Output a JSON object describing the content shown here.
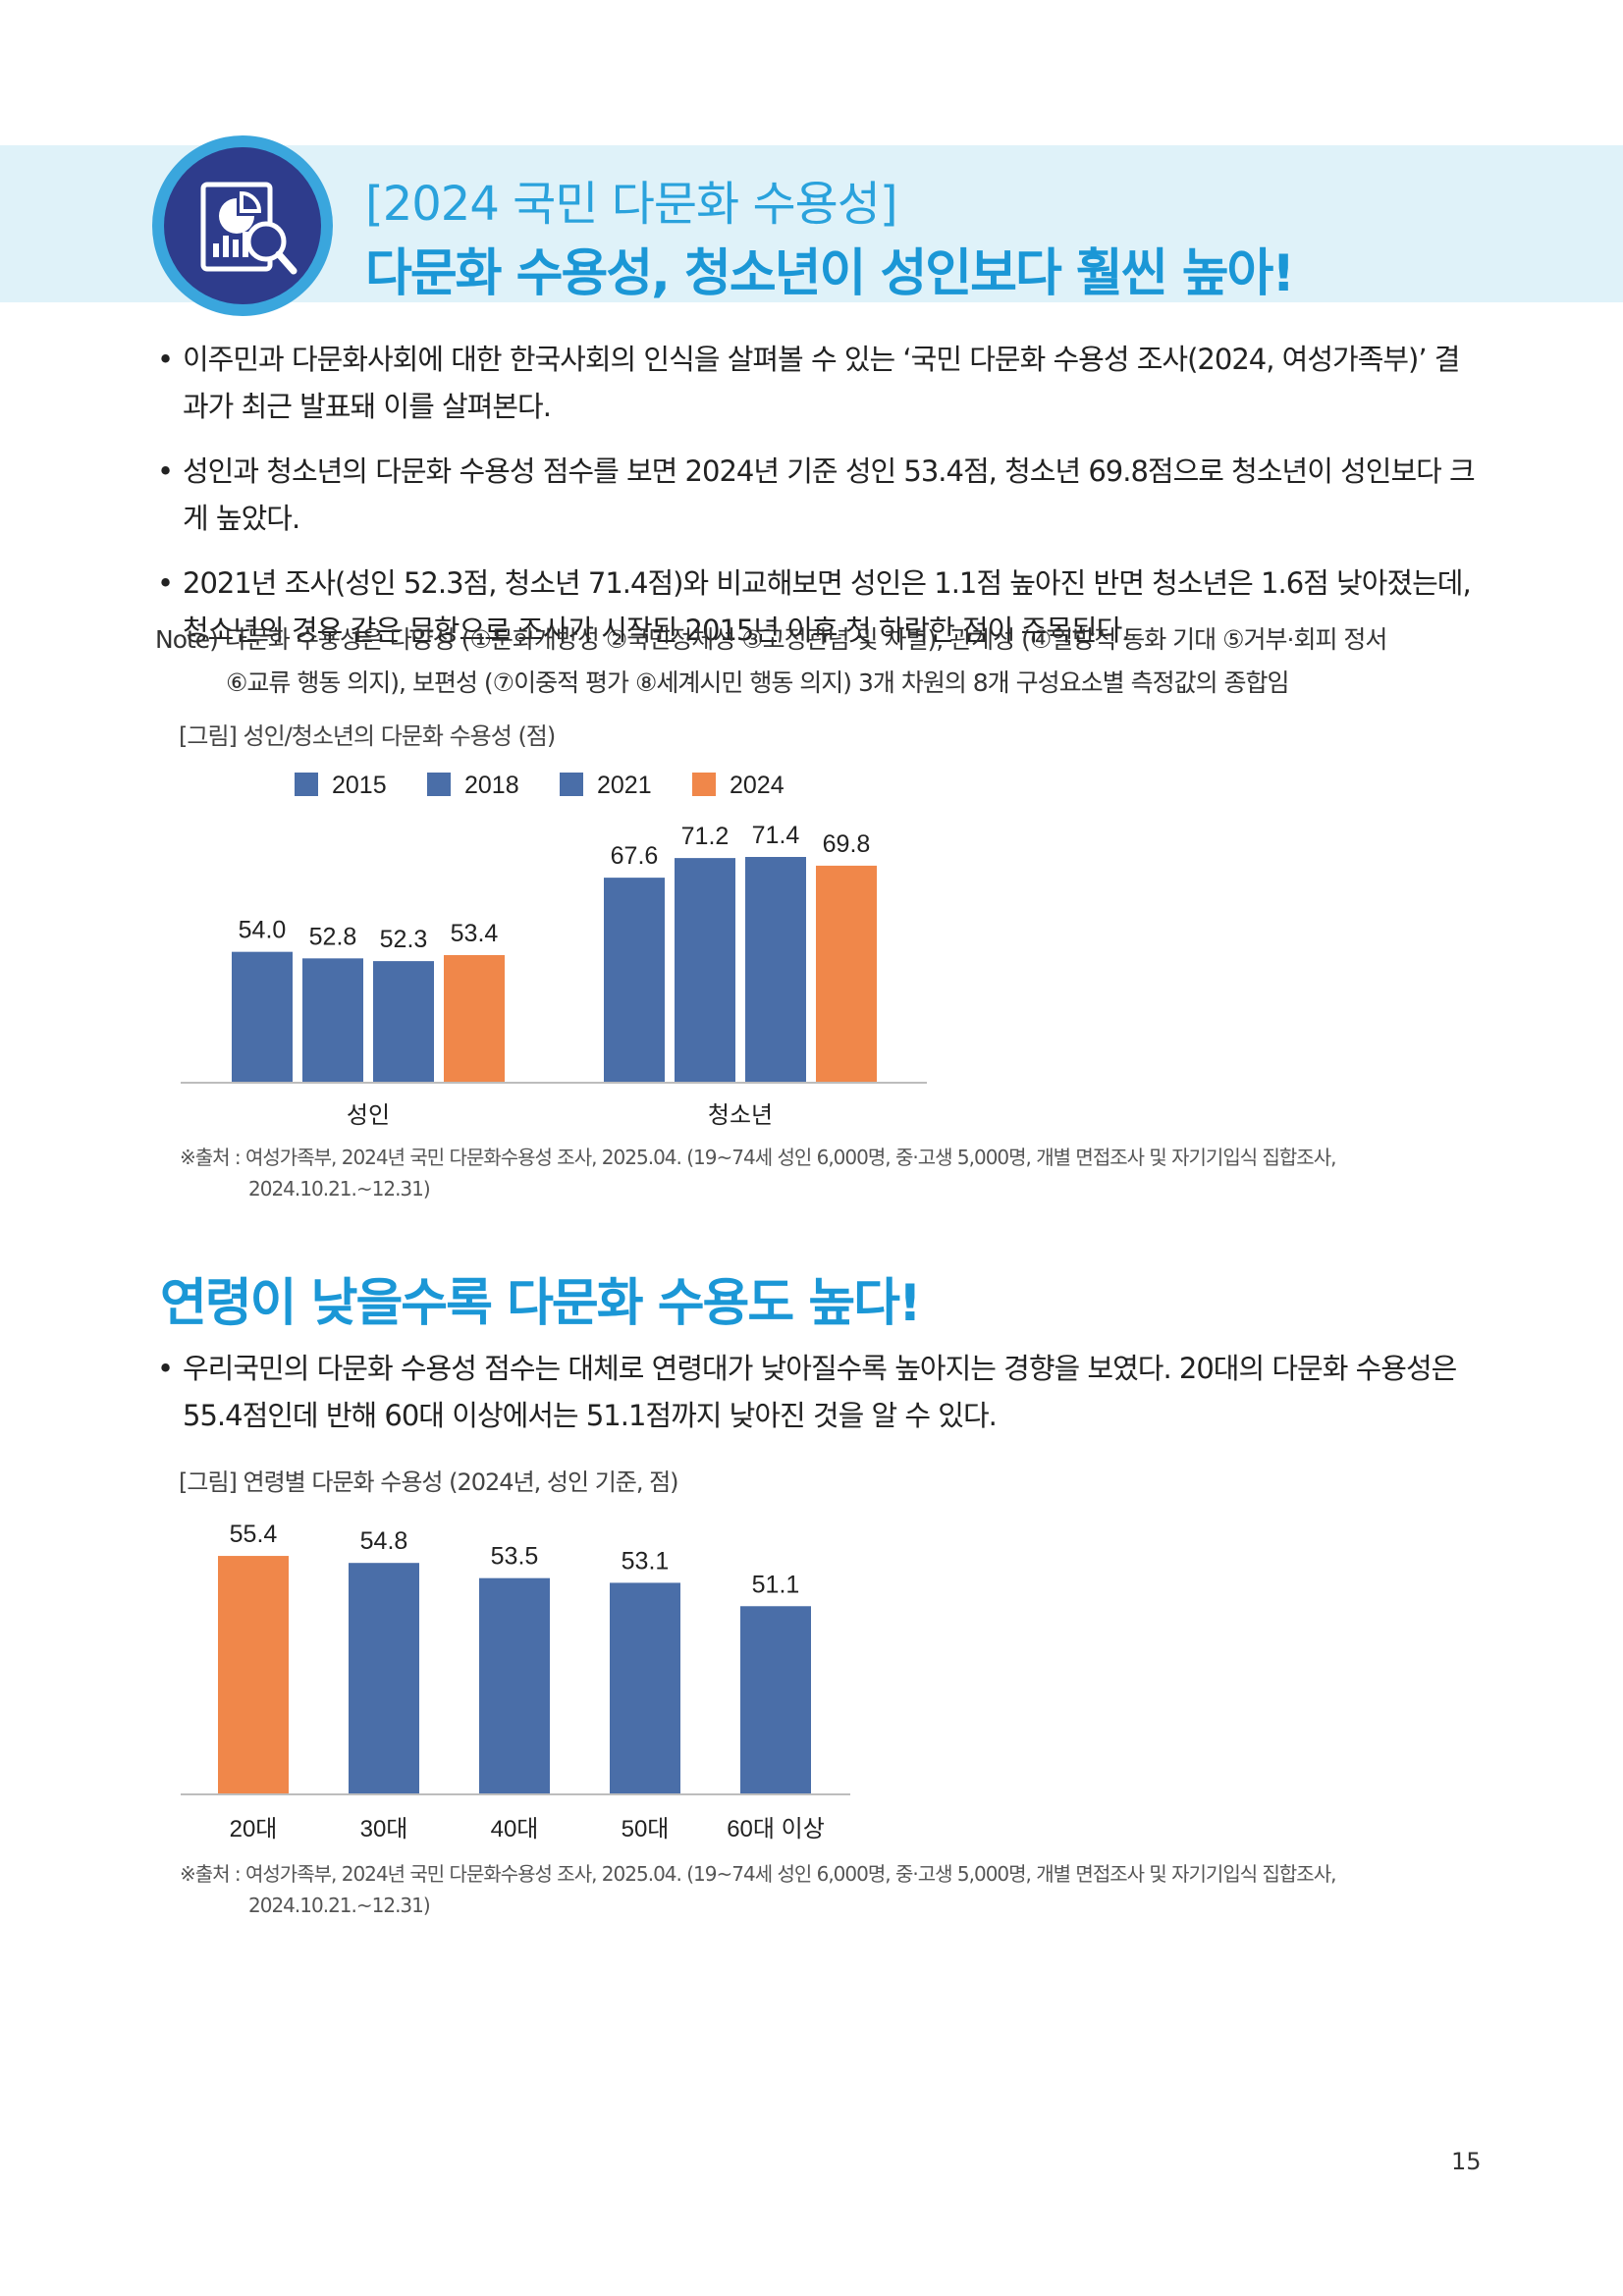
{
  "header": {
    "subtitle": "[2024 국민 다문화 수용성]",
    "title": "다문화 수용성, 청소년이 성인보다 훨씬 높아!"
  },
  "intro_bullets": [
    "이주민과 다문화사회에 대한 한국사회의 인식을 살펴볼 수 있는 ‘국민 다문화 수용성 조사(2024, 여성가족부)’ 결과가 최근 발표돼 이를 살펴본다.",
    "성인과 청소년의 다문화 수용성 점수를 보면 2024년 기준 성인 53.4점, 청소년 69.8점으로 청소년이 성인보다 크게 높았다.",
    "2021년 조사(성인 52.3점, 청소년 71.4점)와 비교해보면 성인은 1.1점 높아진 반면 청소년은 1.6점 낮아졌는데, 청소년의 경우 같은 문항으로 조사가 시작된 2015년 이후 첫 하락한 점이 주목된다."
  ],
  "note": {
    "line1": "Note) 다문화 수용성은 다양성 (①문화개방성 ②국민정체성 ③고정관념 및 차별), 관계성 (④일방적 동화 기대 ⑤거부·회피 정서",
    "line2": "⑥교류 행동 의지), 보편성 (⑦이중적 평가 ⑧세계시민 행동 의지) 3개 차원의 8개 구성요소별 측정값의 종합임"
  },
  "chart1_caption": "[그림] 성인/청소년의 다문화 수용성 (점)",
  "chart1_source": {
    "line1": "※출처 : 여성가족부, 2024년 국민 다문화수용성 조사, 2025.04. (19~74세 성인 6,000명, 중·고생 5,000명, 개별 면접조사 및 자기기입식 집합조사,",
    "line2": "2024.10.21.~12.31)"
  },
  "section2": {
    "heading": "연령이 낮을수록 다문화 수용도 높다!",
    "bullet": "우리국민의 다문화 수용성 점수는 대체로 연령대가 낮아질수록 높아지는 경향을 보였다. 20대의 다문화 수용성은 55.4점인데 반해 60대 이상에서는 51.1점까지 낮아진 것을 알 수 있다."
  },
  "chart2_caption": "[그림] 연령별 다문화 수용성 (2024년, 성인 기준, 점)",
  "chart2_source": {
    "line1": "※출처 : 여성가족부, 2024년 국민 다문화수용성 조사, 2025.04. (19~74세 성인 6,000명, 중·고생 5,000명, 개별 면접조사 및 자기기입식 집합조사,",
    "line2": "2024.10.21.~12.31)"
  },
  "page_number": "15",
  "colors": {
    "blue": "#4a6ea8",
    "orange": "#f0874a",
    "accent": "#1b97d6"
  },
  "chart_data": [
    {
      "type": "bar",
      "title": "[그림] 성인/청소년의 다문화 수용성 (점)",
      "categories": [
        "성인",
        "청소년"
      ],
      "series": [
        {
          "name": "2015",
          "values": [
            54.0,
            67.6
          ]
        },
        {
          "name": "2018",
          "values": [
            52.8,
            71.2
          ]
        },
        {
          "name": "2021",
          "values": [
            52.3,
            71.4
          ]
        },
        {
          "name": "2024",
          "values": [
            53.4,
            69.8
          ]
        }
      ],
      "value_labels": [
        [
          "54.0",
          "67.6"
        ],
        [
          "52.8",
          "71.2"
        ],
        [
          "52.3",
          "71.4"
        ],
        [
          "53.4",
          "69.8"
        ]
      ],
      "highlight_series": "2024",
      "legend": "top",
      "ylim": [
        30,
        75
      ]
    },
    {
      "type": "bar",
      "title": "[그림] 연령별 다문화 수용성 (2024년, 성인 기준, 점)",
      "categories": [
        "20대",
        "30대",
        "40대",
        "50대",
        "60대 이상"
      ],
      "values": [
        55.4,
        54.8,
        53.5,
        53.1,
        51.1
      ],
      "value_labels": [
        "55.4",
        "54.8",
        "53.5",
        "53.1",
        "51.1"
      ],
      "highlight_category": "20대",
      "ylim": [
        35,
        57
      ]
    }
  ]
}
